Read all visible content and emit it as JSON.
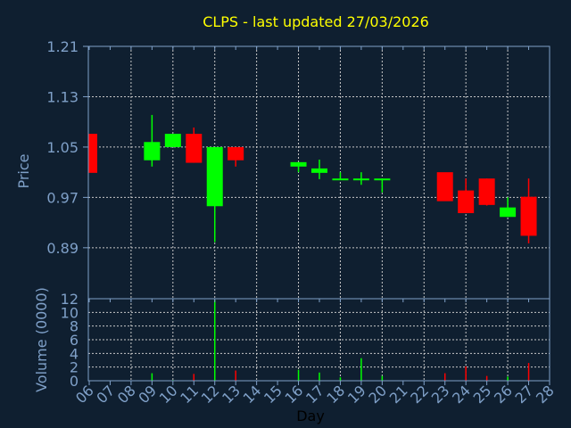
{
  "chart_data": {
    "type": "candlestick",
    "title": "CLPS - last updated 27/03/2026",
    "xlabel": "Day",
    "ylabel": "Price",
    "volume_label": "Volume (0000)",
    "x_ticks": [
      "06",
      "07",
      "08",
      "09",
      "10",
      "11",
      "12",
      "13",
      "14",
      "15",
      "16",
      "17",
      "18",
      "19",
      "20",
      "21",
      "22",
      "23",
      "24",
      "25",
      "26",
      "27",
      "28"
    ],
    "y_ticks": [
      "1.21",
      "1.13",
      "1.05",
      "0.97",
      "0.89"
    ],
    "ylim": [
      0.809,
      1.21
    ],
    "volume_ticks": [
      "0",
      "2",
      "4",
      "6",
      "8",
      "10",
      "12"
    ],
    "volume_lim": [
      0,
      12
    ],
    "grid": true,
    "colors": {
      "background": "#0f1f30",
      "up": "#00ff00",
      "down": "#ff0000",
      "axis": "#7fa0c8",
      "grid": "#c8c8c8",
      "title": "#ffff00"
    },
    "candles": [
      {
        "day": "06",
        "open": 1.071,
        "high": 1.071,
        "low": 1.009,
        "close": 1.009,
        "volume": 0
      },
      {
        "day": "09",
        "open": 1.029,
        "high": 1.101,
        "low": 1.019,
        "close": 1.058,
        "volume": 1.1
      },
      {
        "day": "10",
        "open": 1.05,
        "high": 1.071,
        "low": 1.05,
        "close": 1.071,
        "volume": 0.1
      },
      {
        "day": "11",
        "open": 1.071,
        "high": 1.081,
        "low": 1.025,
        "close": 1.025,
        "volume": 1.0
      },
      {
        "day": "12",
        "open": 0.956,
        "high": 1.05,
        "low": 0.899,
        "close": 1.05,
        "volume": 11.8
      },
      {
        "day": "13",
        "open": 1.05,
        "high": 1.05,
        "low": 1.019,
        "close": 1.029,
        "volume": 1.5
      },
      {
        "day": "16",
        "open": 1.019,
        "high": 1.026,
        "low": 1.01,
        "close": 1.026,
        "volume": 1.6
      },
      {
        "day": "17",
        "open": 1.009,
        "high": 1.03,
        "low": 0.999,
        "close": 1.016,
        "volume": 1.2
      },
      {
        "day": "18",
        "open": 0.999,
        "high": 1.01,
        "low": 0.999,
        "close": 1.0,
        "volume": 0.5
      },
      {
        "day": "19",
        "open": 0.999,
        "high": 1.01,
        "low": 0.99,
        "close": 1.0,
        "volume": 3.3
      },
      {
        "day": "20",
        "open": 0.999,
        "high": 1.0,
        "low": 0.978,
        "close": 1.0,
        "volume": 0.7
      },
      {
        "day": "23",
        "open": 1.01,
        "high": 1.01,
        "low": 0.964,
        "close": 0.964,
        "volume": 1.1
      },
      {
        "day": "24",
        "open": 0.981,
        "high": 1.0,
        "low": 0.945,
        "close": 0.945,
        "volume": 2.1
      },
      {
        "day": "25",
        "open": 1.0,
        "high": 1.0,
        "low": 0.957,
        "close": 0.958,
        "volume": 0.7
      },
      {
        "day": "26",
        "open": 0.939,
        "high": 0.97,
        "low": 0.939,
        "close": 0.954,
        "volume": 0.6
      },
      {
        "day": "27",
        "open": 0.971,
        "high": 1.0,
        "low": 0.897,
        "close": 0.909,
        "volume": 2.6
      }
    ]
  }
}
